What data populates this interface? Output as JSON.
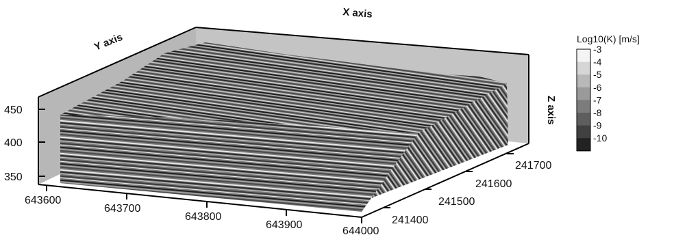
{
  "axes": {
    "x_title": "X axis",
    "y_title": "Y axis",
    "z_title": "Z axis",
    "x_ticks": [
      "643600",
      "643700",
      "643800",
      "643900",
      "644000"
    ],
    "y_ticks": [
      "241400",
      "241500",
      "241600",
      "241700"
    ],
    "z_ticks": [
      "450",
      "400",
      "350"
    ]
  },
  "legend": {
    "title": "Log10(K) [m/s]",
    "levels": [
      "-3",
      "-4",
      "-5",
      "-6",
      "-7",
      "-8",
      "-9",
      "-10"
    ],
    "colors": [
      "#f4f4f4",
      "#d6d6d6",
      "#b8b8b8",
      "#9a9a9a",
      "#7c7c7c",
      "#5e5e5e",
      "#404040",
      "#222222"
    ]
  },
  "colors": {
    "backwall": "#b7b7b7",
    "frame": "#000000"
  }
}
